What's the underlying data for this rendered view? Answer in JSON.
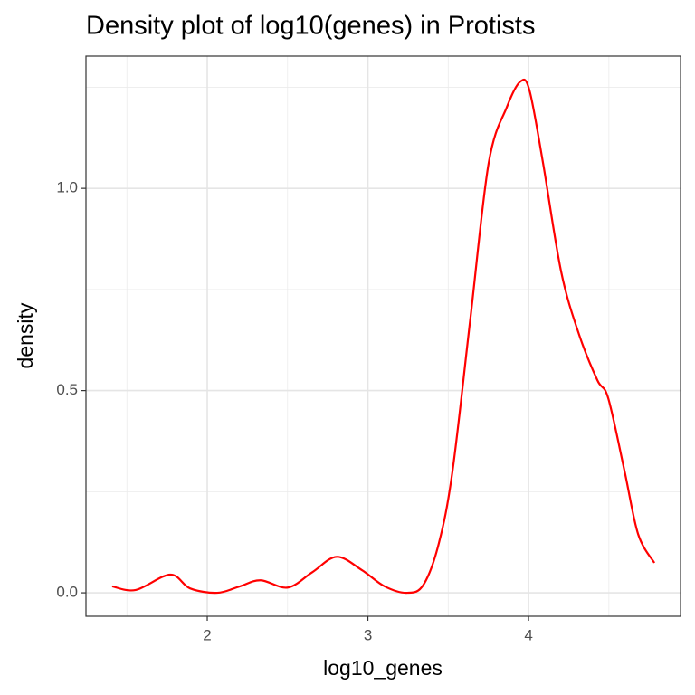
{
  "chart_data": {
    "type": "line",
    "title": "Density plot of log10(genes) in Protists",
    "x_label": "log10_genes",
    "y_label": "density",
    "x": [
      1.408,
      1.555,
      1.769,
      1.893,
      2.062,
      2.203,
      2.332,
      2.501,
      2.654,
      2.806,
      2.963,
      3.104,
      3.245,
      3.346,
      3.442,
      3.527,
      3.639,
      3.752,
      3.865,
      3.949,
      4.006,
      4.09,
      4.203,
      4.315,
      4.428,
      4.496,
      4.597,
      4.682,
      4.783
    ],
    "series": [
      {
        "color": "#ff0000",
        "values": [
          0.016,
          0.007,
          0.045,
          0.011,
          0.0,
          0.016,
          0.031,
          0.013,
          0.051,
          0.089,
          0.056,
          0.016,
          0.0,
          0.02,
          0.123,
          0.302,
          0.682,
          1.063,
          1.201,
          1.264,
          1.242,
          1.063,
          0.794,
          0.638,
          0.526,
          0.481,
          0.302,
          0.145,
          0.074
        ]
      }
    ],
    "xlim": [
      1.245,
      4.946
    ],
    "ylim": [
      -0.058,
      1.327
    ],
    "xticks": [
      2,
      3,
      4
    ],
    "yticks": [
      {
        "value": 0,
        "label": "0.0"
      },
      {
        "value": 0.5,
        "label": "0.5"
      },
      {
        "value": 1,
        "label": "1.0"
      }
    ],
    "x_minor_ticks": [
      1.5,
      2.5,
      3.5,
      4.5
    ],
    "y_minor_ticks": [
      0.25,
      0.75,
      1.25
    ],
    "grid": true
  }
}
